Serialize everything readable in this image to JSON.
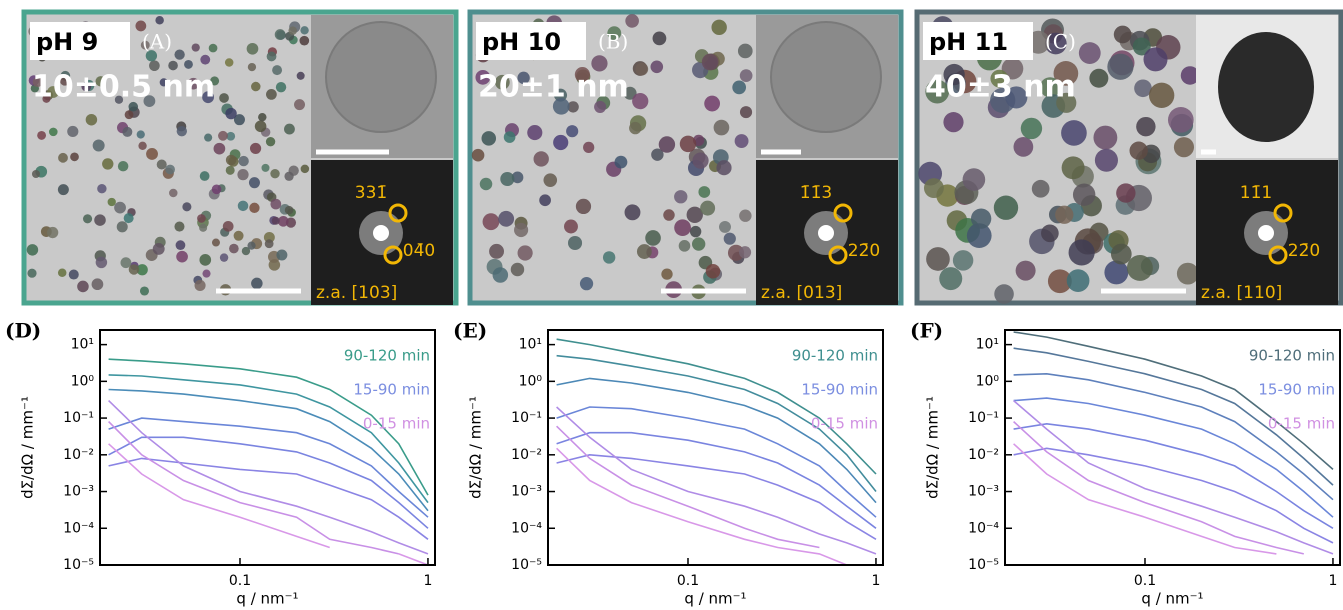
{
  "panels": [
    {
      "label": "pH 9",
      "letter": "(A)",
      "size": "10±0.5 nm",
      "border": "#4aa58f",
      "fft": [
        "331̄",
        "04̄0"
      ],
      "zone": "z.a. [103]"
    },
    {
      "label": "pH 10",
      "letter": "(B)",
      "size": "20±1 nm",
      "border": "#4f8f8f",
      "fft": [
        "1̄1̄3",
        "22̄0"
      ],
      "zone": "z.a. [013]"
    },
    {
      "label": "pH 11",
      "letter": "(C)",
      "size": "40±3 nm",
      "border": "#566b73",
      "fft": [
        "11̄1",
        "22̄0"
      ],
      "zone": "z.a. [110]"
    }
  ],
  "chart_data": [
    {
      "type": "line",
      "letter": "(D)",
      "xlabel": "q / nm⁻¹",
      "ylabel": "dΣ/dΩ / mm⁻¹",
      "xlog": true,
      "ylog": true,
      "xlim": [
        0.018,
        1.09
      ],
      "ylim": [
        1e-05,
        25
      ],
      "xticks": [
        0.1,
        1
      ],
      "yticks": [
        {
          "value": 10,
          "label": "10¹"
        },
        {
          "value": 1,
          "label": "10⁰"
        },
        {
          "value": 0.1,
          "label": "10⁻¹"
        },
        {
          "value": 0.01,
          "label": "10⁻²"
        },
        {
          "value": 0.001,
          "label": "10⁻³"
        },
        {
          "value": 0.0001,
          "label": "10⁻⁴"
        },
        {
          "value": 1e-05,
          "label": "10⁻⁵"
        }
      ],
      "annotations": [
        {
          "text": "90-120 min",
          "color": "#3a9c8a"
        },
        {
          "text": "15-90 min",
          "color": "#7b8ee0"
        },
        {
          "text": "0-15 min",
          "color": "#d090e2"
        }
      ],
      "x": [
        0.02,
        0.03,
        0.05,
        0.1,
        0.2,
        0.3,
        0.5,
        0.7,
        1.0
      ],
      "series": [
        {
          "color": "#3a9c8a",
          "values": [
            4,
            3.6,
            3,
            2.2,
            1.3,
            0.6,
            0.12,
            0.02,
            0.0008
          ]
        },
        {
          "color": "#3f96a0",
          "values": [
            1.5,
            1.4,
            1.1,
            0.8,
            0.45,
            0.2,
            0.04,
            0.006,
            0.0005
          ]
        },
        {
          "color": "#4b8cb8",
          "values": [
            0.6,
            0.55,
            0.45,
            0.3,
            0.18,
            0.08,
            0.015,
            0.003,
            0.0003
          ]
        },
        {
          "color": "#6a86d8",
          "values": [
            0.05,
            0.1,
            0.08,
            0.06,
            0.04,
            0.02,
            0.005,
            0.001,
            0.0002
          ]
        },
        {
          "color": "#7a84e0",
          "values": [
            0.01,
            0.03,
            0.03,
            0.02,
            0.012,
            0.006,
            0.002,
            0.0005,
            0.0001
          ]
        },
        {
          "color": "#8a84e4",
          "values": [
            0.005,
            0.008,
            0.006,
            0.004,
            0.003,
            0.0015,
            0.0006,
            0.0002,
            5e-05
          ]
        },
        {
          "color": "#b08ce6",
          "values": [
            0.3,
            0.04,
            0.005,
            0.001,
            0.0004,
            0.0002,
            8e-05,
            4e-05,
            2e-05
          ]
        },
        {
          "color": "#c890e6",
          "values": [
            0.08,
            0.01,
            0.002,
            0.0005,
            0.0002,
            5e-05,
            3e-05,
            2e-05,
            null
          ]
        },
        {
          "color": "#d898e8",
          "values": [
            0.02,
            0.003,
            0.0006,
            0.0002,
            6e-05,
            3e-05,
            null,
            2e-05,
            1e-05
          ]
        }
      ]
    },
    {
      "type": "line",
      "letter": "(E)",
      "xlabel": "q / nm⁻¹",
      "ylabel": "dΣ/dΩ / mm⁻¹",
      "xlog": true,
      "ylog": true,
      "xlim": [
        0.018,
        1.09
      ],
      "ylim": [
        1e-05,
        25
      ],
      "xticks": [
        0.1,
        1
      ],
      "yticks": [
        {
          "value": 10,
          "label": "10¹"
        },
        {
          "value": 1,
          "label": "10⁰"
        },
        {
          "value": 0.1,
          "label": "10⁻¹"
        },
        {
          "value": 0.01,
          "label": "10⁻²"
        },
        {
          "value": 0.001,
          "label": "10⁻³"
        },
        {
          "value": 0.0001,
          "label": "10⁻⁴"
        },
        {
          "value": 1e-05,
          "label": "10⁻⁵"
        }
      ],
      "annotations": [
        {
          "text": "90-120 min",
          "color": "#3f8f8f"
        },
        {
          "text": "15-90 min",
          "color": "#7b8ee0"
        },
        {
          "text": "0-15 min",
          "color": "#d090e2"
        }
      ],
      "x": [
        0.02,
        0.03,
        0.05,
        0.1,
        0.2,
        0.3,
        0.5,
        0.7,
        1.0
      ],
      "series": [
        {
          "color": "#3f8f8f",
          "values": [
            14,
            10,
            6,
            3,
            1.2,
            0.5,
            0.1,
            0.02,
            0.003
          ]
        },
        {
          "color": "#438c9c",
          "values": [
            5,
            4,
            2.6,
            1.4,
            0.6,
            0.25,
            0.05,
            0.01,
            0.001
          ]
        },
        {
          "color": "#4c88b6",
          "values": [
            0.8,
            1.2,
            0.9,
            0.5,
            0.22,
            0.1,
            0.02,
            0.004,
            0.0005
          ]
        },
        {
          "color": "#6a86d8",
          "values": [
            0.1,
            0.2,
            0.18,
            0.1,
            0.05,
            0.02,
            0.005,
            0.001,
            0.0002
          ]
        },
        {
          "color": "#7a84e0",
          "values": [
            0.02,
            0.04,
            0.04,
            0.025,
            0.012,
            0.006,
            0.0015,
            0.0004,
            0.0001
          ]
        },
        {
          "color": "#8a84e4",
          "values": [
            0.006,
            0.01,
            0.008,
            0.005,
            0.003,
            0.0015,
            0.0005,
            0.00015,
            5e-05
          ]
        },
        {
          "color": "#b08ce6",
          "values": [
            0.2,
            0.03,
            0.004,
            0.001,
            0.0004,
            0.0002,
            7e-05,
            4e-05,
            2e-05
          ]
        },
        {
          "color": "#c890e6",
          "values": [
            0.06,
            0.008,
            0.0015,
            0.0004,
            0.0001,
            5e-05,
            3e-05,
            null,
            2e-05
          ]
        },
        {
          "color": "#d898e8",
          "values": [
            0.015,
            0.002,
            0.0005,
            0.00015,
            5e-05,
            3e-05,
            2e-05,
            1e-05,
            null
          ]
        }
      ]
    },
    {
      "type": "line",
      "letter": "(F)",
      "xlabel": "q / nm⁻¹",
      "ylabel": "dΣ/dΩ / mm⁻¹",
      "xlog": true,
      "ylog": true,
      "xlim": [
        0.018,
        1.09
      ],
      "ylim": [
        1e-05,
        25
      ],
      "xticks": [
        0.1,
        1
      ],
      "yticks": [
        {
          "value": 10,
          "label": "10¹"
        },
        {
          "value": 1,
          "label": "10⁰"
        },
        {
          "value": 0.1,
          "label": "10⁻¹"
        },
        {
          "value": 0.01,
          "label": "10⁻²"
        },
        {
          "value": 0.001,
          "label": "10⁻³"
        },
        {
          "value": 0.0001,
          "label": "10⁻⁴"
        },
        {
          "value": 1e-05,
          "label": "10⁻⁵"
        }
      ],
      "annotations": [
        {
          "text": "90-120 min",
          "color": "#4f6e7a"
        },
        {
          "text": "15-90 min",
          "color": "#7b8ee0"
        },
        {
          "text": "0-15 min",
          "color": "#d090e2"
        }
      ],
      "x": [
        0.02,
        0.03,
        0.05,
        0.1,
        0.2,
        0.3,
        0.5,
        0.7,
        1.0
      ],
      "series": [
        {
          "color": "#4f6e7a",
          "values": [
            22,
            16,
            9,
            4,
            1.4,
            0.6,
            0.08,
            0.02,
            0.004
          ]
        },
        {
          "color": "#55779a",
          "values": [
            8,
            6,
            3.5,
            1.6,
            0.6,
            0.25,
            0.035,
            0.008,
            0.0015
          ]
        },
        {
          "color": "#5e80bc",
          "values": [
            1.5,
            1.6,
            1.1,
            0.5,
            0.2,
            0.08,
            0.012,
            0.003,
            0.0006
          ]
        },
        {
          "color": "#6a86d8",
          "values": [
            0.3,
            0.35,
            0.25,
            0.12,
            0.05,
            0.02,
            0.004,
            0.001,
            0.0002
          ]
        },
        {
          "color": "#7a84e0",
          "values": [
            0.05,
            0.07,
            0.05,
            0.025,
            0.01,
            0.005,
            0.001,
            0.0003,
            0.0001
          ]
        },
        {
          "color": "#8a84e4",
          "values": [
            0.01,
            0.015,
            0.01,
            0.005,
            0.002,
            0.001,
            0.0003,
            0.0001,
            4e-05
          ]
        },
        {
          "color": "#b08ce6",
          "values": [
            0.3,
            0.05,
            0.006,
            0.0012,
            0.0004,
            0.0002,
            8e-05,
            4e-05,
            2e-05
          ]
        },
        {
          "color": "#c890e6",
          "values": [
            0.08,
            0.012,
            0.002,
            0.0005,
            0.00015,
            6e-05,
            3e-05,
            2e-05,
            null
          ]
        },
        {
          "color": "#d898e8",
          "values": [
            0.02,
            0.003,
            0.0006,
            0.0002,
            6e-05,
            3e-05,
            2e-05,
            null,
            1e-05
          ]
        }
      ]
    }
  ]
}
